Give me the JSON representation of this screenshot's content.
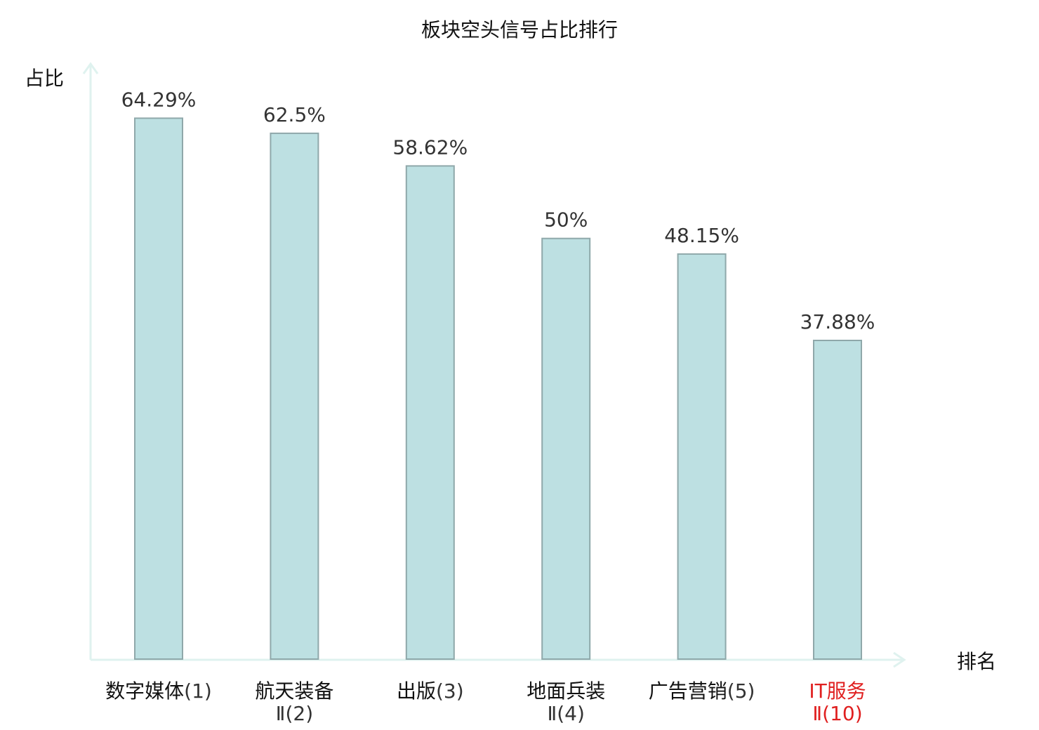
{
  "chart_data": {
    "type": "bar",
    "title": "板块空头信号占比排行",
    "ylabel": "占比",
    "xlabel": "排名",
    "ylim": [
      0,
      70
    ],
    "grid": false,
    "categories": [
      {
        "line1": "数字媒体",
        "line1_suffix": "(1)",
        "line2": "",
        "highlight": false
      },
      {
        "line1": "航天装备",
        "line1_suffix": "",
        "line2": "Ⅱ(2)",
        "highlight": false
      },
      {
        "line1": "出版",
        "line1_suffix": "(3)",
        "line2": "",
        "highlight": false
      },
      {
        "line1": "地面兵装",
        "line1_suffix": "",
        "line2": "Ⅱ(4)",
        "highlight": false
      },
      {
        "line1": "广告营销",
        "line1_suffix": "(5)",
        "line2": "",
        "highlight": false
      },
      {
        "line1": "IT服务",
        "line1_suffix": "",
        "line2": "Ⅱ(10)",
        "highlight": true
      }
    ],
    "values": [
      64.29,
      62.5,
      58.62,
      50,
      48.15,
      37.88
    ],
    "value_labels": [
      "64.29%",
      "62.5%",
      "58.62%",
      "50%",
      "48.15%",
      "37.88%"
    ]
  },
  "colors": {
    "bar_fill": "#bde0e2",
    "bar_stroke": "#8fa8aa",
    "axis": "#dff2ef",
    "text": "#333333",
    "highlight": "#e02020"
  }
}
